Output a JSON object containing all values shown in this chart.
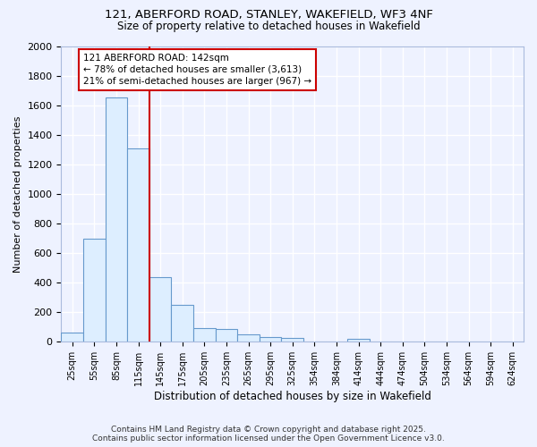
{
  "title_line1": "121, ABERFORD ROAD, STANLEY, WAKEFIELD, WF3 4NF",
  "title_line2": "Size of property relative to detached houses in Wakefield",
  "xlabel": "Distribution of detached houses by size in Wakefield",
  "ylabel": "Number of detached properties",
  "categories": [
    "25sqm",
    "55sqm",
    "85sqm",
    "115sqm",
    "145sqm",
    "175sqm",
    "205sqm",
    "235sqm",
    "265sqm",
    "295sqm",
    "325sqm",
    "354sqm",
    "384sqm",
    "414sqm",
    "444sqm",
    "474sqm",
    "504sqm",
    "534sqm",
    "564sqm",
    "594sqm",
    "624sqm"
  ],
  "values": [
    65,
    695,
    1650,
    1310,
    440,
    250,
    95,
    85,
    48,
    30,
    25,
    5,
    0,
    20,
    0,
    0,
    0,
    0,
    0,
    0,
    0
  ],
  "bar_color": "#ddeeff",
  "bar_edge_color": "#6699cc",
  "red_line_index": 4,
  "annotation_line1": "121 ABERFORD ROAD: 142sqm",
  "annotation_line2": "← 78% of detached houses are smaller (3,613)",
  "annotation_line3": "21% of semi-detached houses are larger (967) →",
  "annotation_box_color": "#ffffff",
  "annotation_box_edge": "#cc0000",
  "footer_line1": "Contains HM Land Registry data © Crown copyright and database right 2025.",
  "footer_line2": "Contains public sector information licensed under the Open Government Licence v3.0.",
  "ylim": [
    0,
    2000
  ],
  "yticks": [
    0,
    200,
    400,
    600,
    800,
    1000,
    1200,
    1400,
    1600,
    1800,
    2000
  ],
  "background_color": "#eef2ff",
  "plot_bg_color": "#eef2ff",
  "grid_color": "#ffffff",
  "bar_width": 1.0,
  "figwidth": 6.0,
  "figheight": 5.0,
  "dpi": 100
}
